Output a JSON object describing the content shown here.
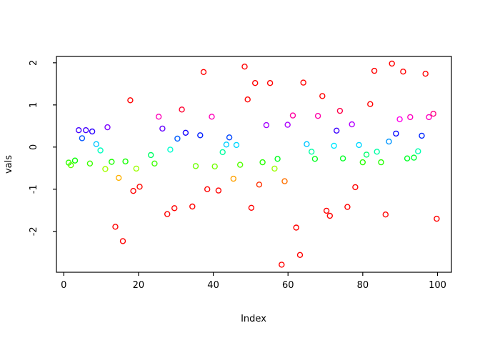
{
  "figure": {
    "background": "#FFFFFF",
    "frame_color": "#000000"
  },
  "chart_data": {
    "type": "scatter",
    "title": "",
    "xlabel": "Index",
    "ylabel": "vals",
    "xlim": [
      -1.97,
      103.73
    ],
    "ylim": [
      -2.97,
      2.15
    ],
    "x_ticks": [
      0,
      20,
      40,
      60,
      80,
      100
    ],
    "y_ticks": [
      -2,
      -1,
      0,
      1,
      2
    ],
    "grid": false,
    "legend": "none",
    "marker": "open-circle",
    "color_rule": "hue maps to value: red at |v| large, orange ~ -0.8, yellow-green ~ -0.5, green ~ -0.35, spring ~ -0.1, cyan ~ 0.05, blue ~ 0.3, violet ~ 0.5, magenta ~ 0.7, pink ~ 0.85",
    "points": [
      [
        1.3,
        -0.37,
        "#2BFF00"
      ],
      [
        1.9,
        -0.43,
        "#5BFF00"
      ],
      [
        3.0,
        -0.32,
        "#03FF00"
      ],
      [
        4.0,
        0.4,
        "#4300FF"
      ],
      [
        4.9,
        0.21,
        "#0056FF"
      ],
      [
        5.9,
        0.4,
        "#4300FF"
      ],
      [
        7.0,
        -0.39,
        "#3BFF00"
      ],
      [
        7.6,
        0.37,
        "#2B00FF"
      ],
      [
        8.7,
        0.07,
        "#00C7FF"
      ],
      [
        9.8,
        -0.08,
        "#00FFBF"
      ],
      [
        11.1,
        -0.52,
        "#A4FF00"
      ],
      [
        11.7,
        0.47,
        "#7C00FF"
      ],
      [
        12.8,
        -0.35,
        "#1BFF00"
      ],
      [
        13.8,
        -1.89,
        "#FF0000"
      ],
      [
        14.7,
        -0.73,
        "#FFB100"
      ],
      [
        15.8,
        -2.23,
        "#FF0000"
      ],
      [
        16.5,
        -0.34,
        "#13FF00"
      ],
      [
        17.8,
        1.11,
        "#FF0000"
      ],
      [
        18.6,
        -1.04,
        "#FF0000"
      ],
      [
        19.4,
        -0.51,
        "#9CFF00"
      ],
      [
        20.3,
        -0.94,
        "#FF0800"
      ],
      [
        23.3,
        -0.19,
        "#00FF66"
      ],
      [
        24.3,
        -0.39,
        "#3BFF00"
      ],
      [
        25.4,
        0.72,
        "#FF00B9"
      ],
      [
        26.4,
        0.44,
        "#6300FF"
      ],
      [
        27.7,
        -1.59,
        "#FF0000"
      ],
      [
        28.5,
        -0.06,
        "#00FFCF"
      ],
      [
        29.6,
        -1.45,
        "#FF0000"
      ],
      [
        30.4,
        0.2,
        "#005EFF"
      ],
      [
        31.6,
        0.89,
        "#FF0030"
      ],
      [
        32.6,
        0.34,
        "#1300FF"
      ],
      [
        34.4,
        -1.41,
        "#FF0000"
      ],
      [
        35.3,
        -0.45,
        "#6BFF00"
      ],
      [
        36.5,
        0.28,
        "#001EFF"
      ],
      [
        37.4,
        1.78,
        "#FF0000"
      ],
      [
        38.4,
        -1.0,
        "#FF0000"
      ],
      [
        39.6,
        0.72,
        "#FF00B9"
      ],
      [
        40.4,
        -0.46,
        "#73FF00"
      ],
      [
        41.4,
        -1.03,
        "#FF0000"
      ],
      [
        42.5,
        -0.12,
        "#00FF9E"
      ],
      [
        43.5,
        0.06,
        "#00CFFF"
      ],
      [
        44.3,
        0.23,
        "#0046FF"
      ],
      [
        45.4,
        -0.75,
        "#FFA100"
      ],
      [
        46.2,
        0.05,
        "#00D7FF"
      ],
      [
        47.2,
        -0.42,
        "#53FF00"
      ],
      [
        48.4,
        1.91,
        "#FF0000"
      ],
      [
        49.2,
        1.13,
        "#FF0000"
      ],
      [
        50.2,
        -1.44,
        "#FF0000"
      ],
      [
        51.2,
        1.52,
        "#FF0000"
      ],
      [
        52.3,
        -0.89,
        "#FF3000"
      ],
      [
        53.2,
        -0.36,
        "#23FF00"
      ],
      [
        54.2,
        0.52,
        "#A400FF"
      ],
      [
        55.2,
        1.52,
        "#FF0000"
      ],
      [
        56.4,
        -0.51,
        "#9CFF00"
      ],
      [
        57.2,
        -0.28,
        "#00FF1E"
      ],
      [
        58.3,
        -2.79,
        "#FF0000"
      ],
      [
        59.1,
        -0.81,
        "#FF7100"
      ],
      [
        59.9,
        0.53,
        "#AC00FF"
      ],
      [
        61.3,
        0.75,
        "#FF00A1"
      ],
      [
        62.2,
        -1.91,
        "#FF0000"
      ],
      [
        63.2,
        -2.56,
        "#FF0000"
      ],
      [
        64.1,
        1.53,
        "#FF0000"
      ],
      [
        65.0,
        0.07,
        "#00C7FF"
      ],
      [
        66.3,
        -0.11,
        "#00FFA6"
      ],
      [
        67.2,
        -0.28,
        "#00FF1E"
      ],
      [
        68.0,
        0.74,
        "#FF00A9"
      ],
      [
        69.2,
        1.21,
        "#FF0000"
      ],
      [
        70.3,
        -1.51,
        "#FF0000"
      ],
      [
        71.2,
        -1.63,
        "#FF0000"
      ],
      [
        72.3,
        0.03,
        "#00E7FF"
      ],
      [
        73.0,
        0.39,
        "#3B00FF"
      ],
      [
        73.9,
        0.86,
        "#FF0049"
      ],
      [
        74.7,
        -0.27,
        "#00FF26"
      ],
      [
        75.9,
        -1.42,
        "#FF0000"
      ],
      [
        77.1,
        0.54,
        "#B400FF"
      ],
      [
        78.0,
        -0.95,
        "#FF0000"
      ],
      [
        79.0,
        0.05,
        "#00D7FF"
      ],
      [
        80.0,
        -0.36,
        "#23FF00"
      ],
      [
        81.0,
        -0.18,
        "#00FF6E"
      ],
      [
        82.0,
        1.02,
        "#FF0000"
      ],
      [
        83.1,
        1.81,
        "#FF0000"
      ],
      [
        83.8,
        -0.11,
        "#00FFA6"
      ],
      [
        84.9,
        -0.36,
        "#23FF00"
      ],
      [
        86.1,
        -1.6,
        "#FF0000"
      ],
      [
        87.0,
        0.13,
        "#0096FF"
      ],
      [
        87.8,
        1.98,
        "#FF0000"
      ],
      [
        88.9,
        0.32,
        "#0300FF"
      ],
      [
        89.9,
        0.66,
        "#FF00EA"
      ],
      [
        90.8,
        1.79,
        "#FF0000"
      ],
      [
        91.9,
        -0.27,
        "#00FF26"
      ],
      [
        92.7,
        0.71,
        "#FF00C1"
      ],
      [
        93.7,
        -0.25,
        "#00FF36"
      ],
      [
        94.8,
        -0.1,
        "#00FFAF"
      ],
      [
        95.8,
        0.27,
        "#0026FF"
      ],
      [
        96.8,
        1.74,
        "#FF0000"
      ],
      [
        97.7,
        0.71,
        "#FF00C1"
      ],
      [
        98.9,
        0.79,
        "#FF0081"
      ],
      [
        99.8,
        -1.7,
        "#FF0000"
      ]
    ]
  }
}
